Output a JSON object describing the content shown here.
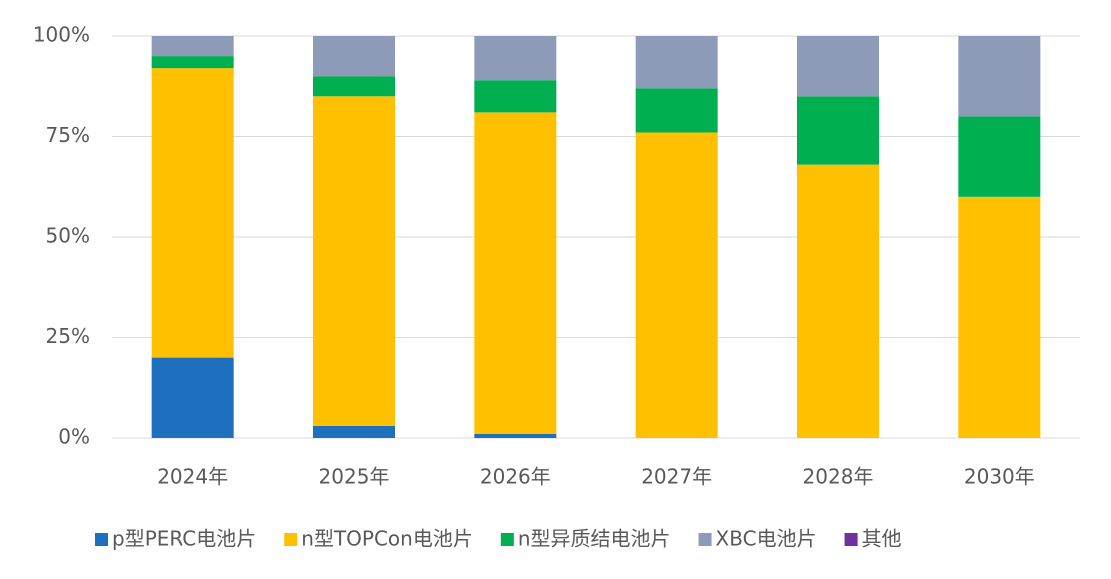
{
  "chart_data": {
    "type": "stacked_bar",
    "categories": [
      "2024年",
      "2025年",
      "2026年",
      "2027年",
      "2028年",
      "2030年"
    ],
    "series": [
      {
        "name": "p型PERC电池片",
        "color": "#1f6fbf",
        "values": [
          20,
          3,
          1,
          0,
          0,
          0
        ]
      },
      {
        "name": "n型TOPCon电池片",
        "color": "#ffc000",
        "values": [
          72,
          82,
          80,
          76,
          68,
          60
        ]
      },
      {
        "name": "n型异质结电池片",
        "color": "#00b050",
        "values": [
          3,
          5,
          8,
          11,
          17,
          20
        ]
      },
      {
        "name": "XBC电池片",
        "color": "#8d9bb8",
        "values": [
          5,
          10,
          11,
          13,
          15,
          20
        ]
      },
      {
        "name": "其他",
        "color": "#7030a0",
        "values": [
          0,
          0,
          0,
          0,
          0,
          0
        ]
      }
    ],
    "ylim": [
      0,
      100
    ],
    "yticks": [
      {
        "value": 0,
        "label": "0%"
      },
      {
        "value": 25,
        "label": "25%"
      },
      {
        "value": 50,
        "label": "50%"
      },
      {
        "value": 75,
        "label": "75%"
      },
      {
        "value": 100,
        "label": "100%"
      }
    ],
    "grid": true
  }
}
